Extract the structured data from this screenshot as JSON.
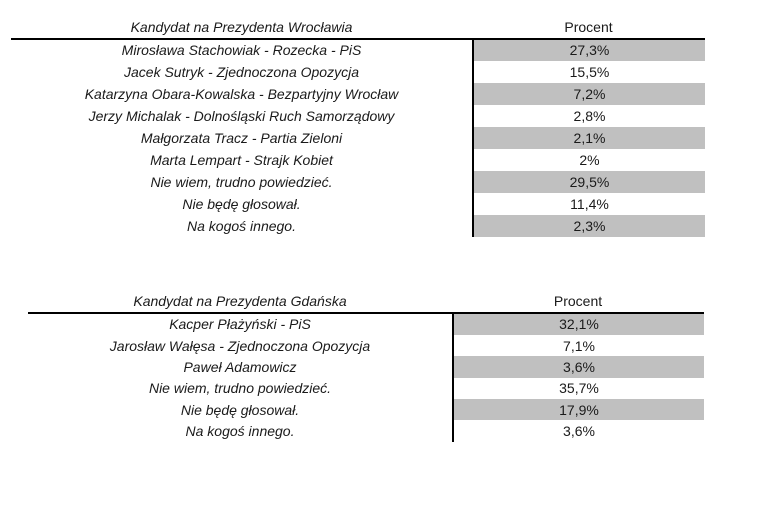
{
  "page": {
    "background_color": "#ffffff",
    "stripe_color": "#c0c0c0",
    "rule_color": "#000000",
    "text_color": "#1a1a1a"
  },
  "tables": [
    {
      "id": "wroclaw-poll",
      "header": {
        "candidate_label": "Kandydat na Prezydenta Wrocławia",
        "percent_label": "Procent"
      },
      "rows": [
        {
          "candidate": "Mirosława Stachowiak - Rozecka - PiS",
          "percent": "27,3%",
          "shaded": true
        },
        {
          "candidate": "Jacek Sutryk - Zjednoczona Opozycja",
          "percent": "15,5%",
          "shaded": false
        },
        {
          "candidate": "Katarzyna Obara-Kowalska - Bezpartyjny Wrocław",
          "percent": "7,2%",
          "shaded": true
        },
        {
          "candidate": "Jerzy Michalak - Dolnośląski Ruch Samorządowy",
          "percent": "2,8%",
          "shaded": false
        },
        {
          "candidate": "Małgorzata Tracz - Partia Zieloni",
          "percent": "2,1%",
          "shaded": true
        },
        {
          "candidate": "Marta Lempart - Strajk Kobiet",
          "percent": "2%",
          "shaded": false
        },
        {
          "candidate": "Nie wiem, trudno powiedzieć.",
          "percent": "29,5%",
          "shaded": true
        },
        {
          "candidate": "Nie będę głosował.",
          "percent": "11,4%",
          "shaded": false
        },
        {
          "candidate": "Na kogoś innego.",
          "percent": "2,3%",
          "shaded": true
        }
      ]
    },
    {
      "id": "gdansk-poll",
      "header": {
        "candidate_label": "Kandydat na Prezydenta Gdańska",
        "percent_label": "Procent"
      },
      "rows": [
        {
          "candidate": "Kacper Płażyński - PiS",
          "percent": "32,1%",
          "shaded": true
        },
        {
          "candidate": "Jarosław Wałęsa - Zjednoczona Opozycja",
          "percent": "7,1%",
          "shaded": false
        },
        {
          "candidate": "Paweł Adamowicz",
          "percent": "3,6%",
          "shaded": true
        },
        {
          "candidate": "Nie wiem, trudno powiedzieć.",
          "percent": "35,7%",
          "shaded": false
        },
        {
          "candidate": "Nie będę głosował.",
          "percent": "17,9%",
          "shaded": true
        },
        {
          "candidate": "Na kogoś innego.",
          "percent": "3,6%",
          "shaded": false
        }
      ]
    }
  ]
}
